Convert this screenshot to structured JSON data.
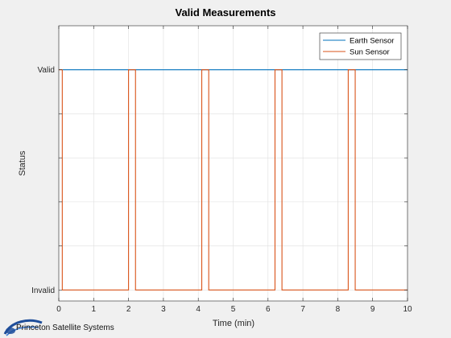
{
  "chart_data": {
    "type": "line",
    "title": "Valid Measurements",
    "xlabel": "Time (min)",
    "ylabel": "Status",
    "xlim": [
      0,
      10
    ],
    "ylim": [
      -0.05,
      1.2
    ],
    "xticks": [
      0,
      1,
      2,
      3,
      4,
      5,
      6,
      7,
      8,
      9,
      10
    ],
    "xtick_labels": [
      "0",
      "1",
      "2",
      "3",
      "4",
      "5",
      "6",
      "7",
      "8",
      "9",
      "10"
    ],
    "yticks": [
      0,
      0.2,
      0.4,
      0.6,
      0.8,
      1
    ],
    "ytick_labels": [
      "Invalid",
      "",
      "",
      "",
      "",
      "Valid"
    ],
    "grid": true,
    "legend_location": "top-right",
    "series": [
      {
        "name": "Earth Sensor",
        "color": "#0072BD",
        "x": [
          0.1,
          10
        ],
        "y": [
          1,
          1
        ]
      },
      {
        "name": "Sun Sensor",
        "color": "#D95319",
        "step": true,
        "x": [
          0.0,
          0.1,
          0.1,
          2.0,
          2.0,
          2.2,
          2.2,
          4.1,
          4.1,
          4.3,
          4.3,
          6.2,
          6.2,
          6.4,
          6.4,
          8.3,
          8.3,
          8.5,
          8.5,
          10.0
        ],
        "y": [
          1,
          1,
          0,
          0,
          1,
          1,
          0,
          0,
          1,
          1,
          0,
          0,
          1,
          1,
          0,
          0,
          1,
          1,
          0,
          0
        ]
      }
    ]
  },
  "footer": {
    "brand_text": "Princeton Satellite Systems",
    "logo_icon": "princeton-satellite-systems-logo-icon"
  }
}
